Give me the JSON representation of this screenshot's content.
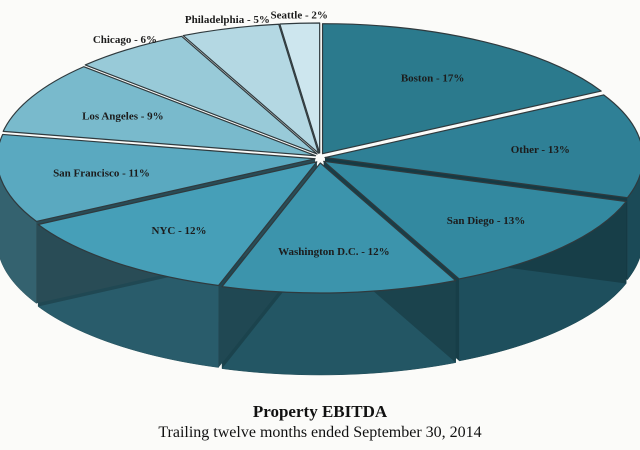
{
  "chart_data": {
    "type": "pie",
    "title": "Property EBITDA",
    "subtitle": "Trailing twelve months ended September 30, 2014",
    "slices": [
      {
        "label": "Boston - 17%",
        "category": "Boston",
        "value": 17,
        "color": "#2b7a8d"
      },
      {
        "label": "Other - 13%",
        "category": "Other",
        "value": 13,
        "color": "#2f8096"
      },
      {
        "label": "San Diego - 13%",
        "category": "San Diego",
        "value": 13,
        "color": "#3389a0"
      },
      {
        "label": "Washington D.C. - 12%",
        "category": "Washington D.C.",
        "value": 12,
        "color": "#3c94ac"
      },
      {
        "label": "NYC - 12%",
        "category": "NYC",
        "value": 12,
        "color": "#469fb8"
      },
      {
        "label": "San Francisco - 11%",
        "category": "San Francisco",
        "value": 11,
        "color": "#5aa9c0"
      },
      {
        "label": "Los Angeles - 9%",
        "category": "Los Angeles",
        "value": 9,
        "color": "#79bacc"
      },
      {
        "label": "Chicago - 6%",
        "category": "Chicago",
        "value": 6,
        "color": "#98cad8"
      },
      {
        "label": "Philadelphia - 5%",
        "category": "Philadelphia",
        "value": 5,
        "color": "#b4d8e3"
      },
      {
        "label": "Seattle - 2%",
        "category": "Seattle",
        "value": 2,
        "color": "#cde6ee"
      }
    ]
  }
}
